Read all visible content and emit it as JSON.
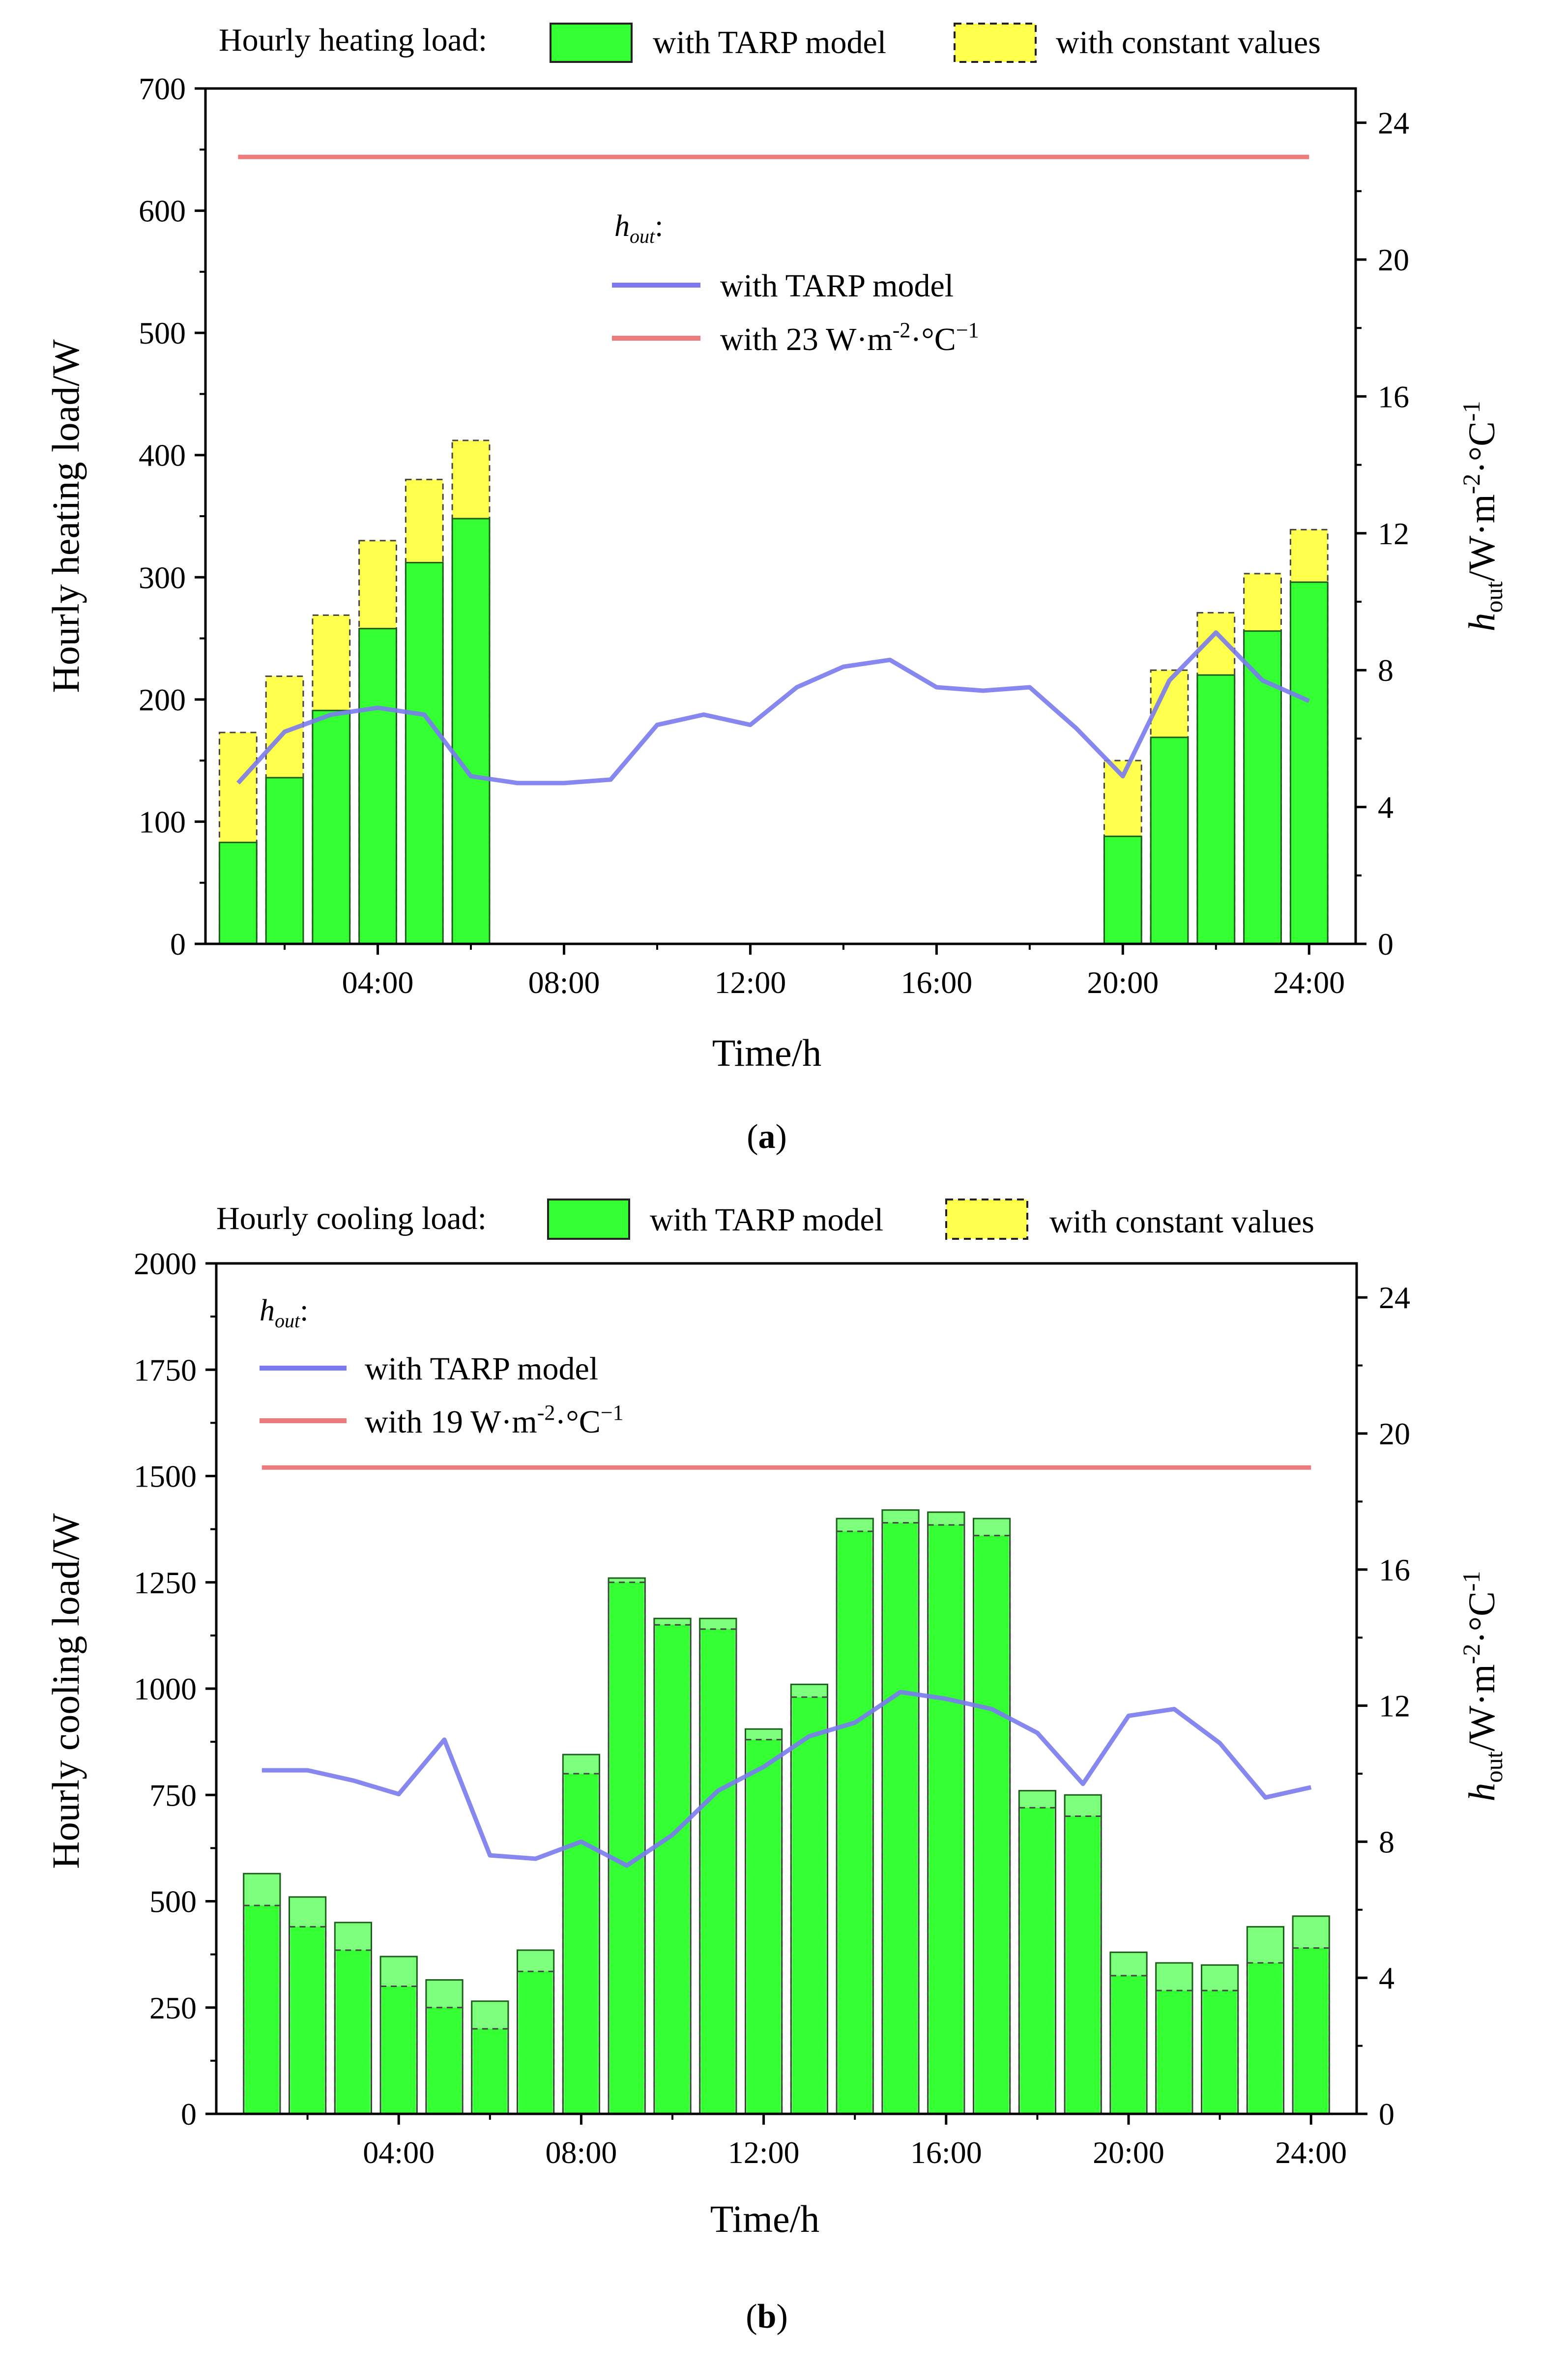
{
  "chart_data": [
    {
      "type": "bar",
      "panel_label": "a",
      "legend_title": "Hourly heating load:",
      "legend_items": [
        "with TARP model",
        "with constant values"
      ],
      "xlabel": "Time/h",
      "ylabel": "Hourly heating load/W",
      "ylabel2_main": "h",
      "ylabel2_sub": "out",
      "ylabel2_unit": "/W·m",
      "ylabel2_exp": "-2",
      "ylabel2_unit2": "·°C",
      "ylabel2_exp2": "-1",
      "xticks": [
        "04:00",
        "08:00",
        "12:00",
        "16:00",
        "20:00",
        "24:00"
      ],
      "xtick_values": [
        4,
        8,
        12,
        16,
        20,
        24
      ],
      "xlim": [
        0.3,
        25
      ],
      "ylim": [
        0,
        700
      ],
      "yticks": [
        0,
        100,
        200,
        300,
        400,
        500,
        600,
        700
      ],
      "ylim2": [
        0,
        25
      ],
      "yticks2": [
        0,
        4,
        8,
        12,
        16,
        20,
        24
      ],
      "hours": [
        1,
        2,
        3,
        4,
        5,
        6,
        7,
        8,
        9,
        10,
        11,
        12,
        13,
        14,
        15,
        16,
        17,
        18,
        19,
        20,
        21,
        22,
        23,
        24
      ],
      "series": [
        {
          "name": "with TARP model",
          "values": [
            83,
            136,
            191,
            258,
            312,
            348,
            0,
            0,
            0,
            0,
            0,
            0,
            0,
            0,
            0,
            0,
            0,
            0,
            0,
            88,
            169,
            220,
            256,
            296
          ]
        },
        {
          "name": "with constant values",
          "values": [
            173,
            219,
            269,
            330,
            380,
            412,
            0,
            0,
            0,
            0,
            0,
            0,
            0,
            0,
            0,
            0,
            0,
            0,
            0,
            150,
            224,
            271,
            303,
            339
          ]
        }
      ],
      "h_out_legend_title": "h",
      "h_out_legend_sub": "out",
      "h_out_legend_colon": ":",
      "h_out_series": [
        {
          "name": "with TARP model",
          "values": [
            4.7,
            6.2,
            6.7,
            6.9,
            6.7,
            4.9,
            4.7,
            4.7,
            4.8,
            6.4,
            6.7,
            6.4,
            7.5,
            8.1,
            8.3,
            7.5,
            7.4,
            7.5,
            6.3,
            4.9,
            7.7,
            9.1,
            7.7,
            7.1
          ]
        },
        {
          "name": "with  23 W·m",
          "exp": "-2",
          "unit2": "·°C",
          "exp2": "−1",
          "values": [
            23,
            23,
            23,
            23,
            23,
            23,
            23,
            23,
            23,
            23,
            23,
            23,
            23,
            23,
            23,
            23,
            23,
            23,
            23,
            23,
            23,
            23,
            23,
            23
          ]
        }
      ]
    },
    {
      "type": "bar",
      "panel_label": "b",
      "legend_title": "Hourly cooling load:",
      "legend_items": [
        "with TARP model",
        "with constant values"
      ],
      "xlabel": "Time/h",
      "ylabel": "Hourly cooling load/W",
      "ylabel2_main": "h",
      "ylabel2_sub": "out",
      "ylabel2_unit": "/W·m",
      "ylabel2_exp": "-2",
      "ylabel2_unit2": "·°C",
      "ylabel2_exp2": "-1",
      "xticks": [
        "04:00",
        "08:00",
        "12:00",
        "16:00",
        "20:00",
        "24:00"
      ],
      "xtick_values": [
        4,
        8,
        12,
        16,
        20,
        24
      ],
      "xlim": [
        0,
        25
      ],
      "ylim": [
        0,
        2000
      ],
      "yticks": [
        0,
        250,
        500,
        750,
        1000,
        1250,
        1500,
        1750,
        2000
      ],
      "ylim2": [
        0,
        25
      ],
      "yticks2": [
        0,
        4,
        8,
        12,
        16,
        20,
        24
      ],
      "hours": [
        1,
        2,
        3,
        4,
        5,
        6,
        7,
        8,
        9,
        10,
        11,
        12,
        13,
        14,
        15,
        16,
        17,
        18,
        19,
        20,
        21,
        22,
        23,
        24
      ],
      "series": [
        {
          "name": "with TARP model",
          "values": [
            565,
            510,
            450,
            370,
            315,
            265,
            385,
            845,
            1260,
            1165,
            1165,
            905,
            1010,
            1400,
            1420,
            1415,
            1400,
            760,
            750,
            380,
            355,
            350,
            440,
            465
          ]
        },
        {
          "name": "with constant values",
          "values": [
            490,
            440,
            385,
            300,
            250,
            200,
            335,
            800,
            1250,
            1150,
            1140,
            880,
            980,
            1370,
            1390,
            1385,
            1360,
            720,
            700,
            325,
            290,
            290,
            355,
            390
          ]
        }
      ],
      "h_out_legend_title": "h",
      "h_out_legend_sub": "out",
      "h_out_legend_colon": ":",
      "h_out_series": [
        {
          "name": "with TARP model",
          "values": [
            10.1,
            10.1,
            9.8,
            9.4,
            11.0,
            7.6,
            7.5,
            8.0,
            7.3,
            8.2,
            9.5,
            10.2,
            11.1,
            11.5,
            12.4,
            12.2,
            11.9,
            11.2,
            9.7,
            11.7,
            11.9,
            10.9,
            9.3,
            9.6
          ]
        },
        {
          "name": "with  19 W·m",
          "exp": "-2",
          "unit2": "·°C",
          "exp2": "−1",
          "values": [
            19,
            19,
            19,
            19,
            19,
            19,
            19,
            19,
            19,
            19,
            19,
            19,
            19,
            19,
            19,
            19,
            19,
            19,
            19,
            19,
            19,
            19,
            19,
            19
          ]
        }
      ]
    }
  ],
  "colors": {
    "tarp_bar": "#33ff33",
    "tarp_bar_light": "#7dff7d",
    "const_bar": "#ffff4d",
    "tarp_line": "#7a7aee",
    "const_line": "#ee7b7b",
    "axis": "#000000"
  }
}
